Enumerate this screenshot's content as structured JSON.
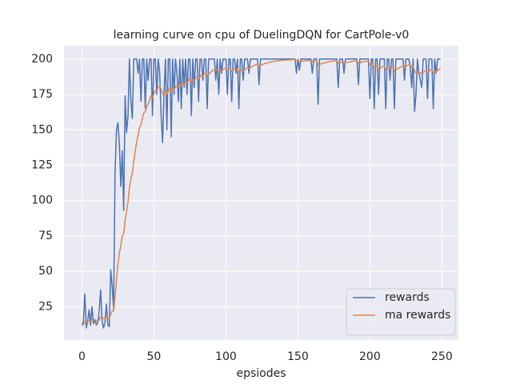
{
  "chart_data": {
    "type": "line",
    "title": "learning curve on cpu of DuelingDQN for CartPole-v0",
    "x_label": "epsiodes",
    "x": [
      0,
      1,
      2,
      3,
      4,
      5,
      6,
      7,
      8,
      9,
      10,
      11,
      12,
      13,
      14,
      15,
      16,
      17,
      18,
      19,
      20,
      21,
      22,
      23,
      24,
      25,
      26,
      27,
      28,
      29,
      30,
      31,
      32,
      33,
      34,
      35,
      36,
      37,
      38,
      39,
      40,
      41,
      42,
      43,
      44,
      45,
      46,
      47,
      48,
      49,
      50,
      51,
      52,
      53,
      54,
      55,
      56,
      57,
      58,
      59,
      60,
      61,
      62,
      63,
      64,
      65,
      66,
      67,
      68,
      69,
      70,
      71,
      72,
      73,
      74,
      75,
      76,
      77,
      78,
      79,
      80,
      81,
      82,
      83,
      84,
      85,
      86,
      87,
      88,
      89,
      90,
      91,
      92,
      93,
      94,
      95,
      96,
      97,
      98,
      99,
      100,
      101,
      102,
      103,
      104,
      105,
      106,
      107,
      108,
      109,
      110,
      111,
      112,
      113,
      114,
      115,
      116,
      117,
      118,
      119,
      120,
      121,
      122,
      123,
      124,
      125,
      126,
      127,
      128,
      129,
      130,
      131,
      132,
      133,
      134,
      135,
      136,
      137,
      138,
      139,
      140,
      141,
      142,
      143,
      144,
      145,
      146,
      147,
      148,
      149,
      150,
      151,
      152,
      153,
      154,
      155,
      156,
      157,
      158,
      159,
      160,
      161,
      162,
      163,
      164,
      165,
      166,
      167,
      168,
      169,
      170,
      171,
      172,
      173,
      174,
      175,
      176,
      177,
      178,
      179,
      180,
      181,
      182,
      183,
      184,
      185,
      186,
      187,
      188,
      189,
      190,
      191,
      192,
      193,
      194,
      195,
      196,
      197,
      198,
      199,
      200,
      201,
      202,
      203,
      204,
      205,
      206,
      207,
      208,
      209,
      210,
      211,
      212,
      213,
      214,
      215,
      216,
      217,
      218,
      219,
      220,
      221,
      222,
      223,
      224,
      225,
      226,
      227,
      228,
      229,
      230,
      231,
      232,
      233,
      234,
      235,
      236,
      237,
      238,
      239,
      240,
      241,
      242,
      243,
      244,
      245,
      246,
      247,
      248,
      249
    ],
    "series": [
      {
        "name": "rewards",
        "color": "#4c72b0",
        "values": [
          12,
          14,
          34,
          10,
          15,
          23,
          12,
          25,
          13,
          16,
          12,
          14,
          22,
          37,
          15,
          10,
          14,
          27,
          12,
          11,
          51,
          40,
          23,
          120,
          150,
          155,
          140,
          110,
          135,
          93,
          174,
          148,
          160,
          200,
          170,
          158,
          200,
          200,
          200,
          190,
          200,
          170,
          200,
          200,
          165,
          200,
          185,
          200,
          200,
          160,
          200,
          200,
          175,
          200,
          190,
          160,
          141,
          175,
          200,
          150,
          200,
          200,
          145,
          200,
          175,
          200,
          190,
          170,
          200,
          165,
          200,
          180,
          200,
          175,
          200,
          200,
          160,
          200,
          180,
          200,
          200,
          170,
          200,
          200,
          185,
          200,
          200,
          165,
          200,
          200,
          200,
          200,
          200,
          185,
          200,
          175,
          200,
          190,
          200,
          200,
          200,
          175,
          200,
          200,
          170,
          200,
          200,
          190,
          200,
          165,
          200,
          200,
          185,
          200,
          200,
          200,
          190,
          200,
          200,
          200,
          200,
          200,
          200,
          182,
          200,
          200,
          200,
          200,
          200,
          200,
          200,
          200,
          200,
          200,
          200,
          200,
          200,
          200,
          200,
          200,
          200,
          200,
          200,
          200,
          200,
          200,
          200,
          200,
          200,
          190,
          200,
          192,
          200,
          200,
          200,
          200,
          200,
          200,
          200,
          200,
          190,
          200,
          200,
          200,
          168,
          200,
          200,
          200,
          200,
          200,
          200,
          200,
          200,
          200,
          200,
          200,
          200,
          200,
          180,
          200,
          200,
          200,
          190,
          200,
          200,
          200,
          200,
          200,
          200,
          200,
          200,
          200,
          182,
          200,
          200,
          200,
          200,
          200,
          200,
          200,
          172,
          200,
          200,
          165,
          200,
          200,
          175,
          200,
          200,
          200,
          200,
          165,
          200,
          200,
          185,
          200,
          200,
          165,
          200,
          200,
          200,
          200,
          200,
          200,
          185,
          200,
          200,
          200,
          195,
          180,
          200,
          163,
          175,
          200,
          190,
          185,
          180,
          200,
          200,
          200,
          172,
          200,
          200,
          200,
          165,
          200,
          190,
          200,
          200,
          200
        ]
      },
      {
        "name": "ma rewards",
        "color": "#dd8452",
        "values": [
          12,
          12.2,
          14.4,
          14,
          14.1,
          15,
          14.7,
          15.7,
          15.4,
          15.4,
          15.1,
          15,
          15.7,
          17.8,
          17.5,
          16.8,
          16.5,
          17.5,
          17,
          16.4,
          19.9,
          21.9,
          22,
          31.8,
          43.6,
          54.8,
          63.3,
          68,
          74.7,
          76.5,
          86.3,
          92.5,
          99.2,
          109.3,
          115.4,
          119.6,
          127.6,
          134.9,
          141.4,
          146.2,
          151.6,
          153.5,
          158.1,
          162.3,
          162.6,
          166.4,
          168.2,
          171.3,
          174.2,
          172.8,
          175.5,
          178,
          177.7,
          179.9,
          180.9,
          178.8,
          175,
          175,
          177.5,
          174.8,
          177.3,
          179.6,
          176.1,
          178.5,
          178.2,
          180.4,
          181.3,
          180.2,
          182.2,
          180.5,
          182.4,
          182.2,
          184,
          183.1,
          184.8,
          186.3,
          183.7,
          185.3,
          184.8,
          186.3,
          187.7,
          185.9,
          187.3,
          188.6,
          188.2,
          189.4,
          190.4,
          187.9,
          189.1,
          190.2,
          191.2,
          192,
          192.8,
          192,
          192.8,
          191,
          191.9,
          191.7,
          192.5,
          193.3,
          193.9,
          192,
          192.8,
          193.5,
          191.2,
          192.1,
          192.9,
          192.6,
          193.3,
          190.5,
          191.4,
          192.3,
          191.6,
          192.4,
          193.2,
          193.9,
          193.5,
          194.1,
          194.7,
          195.2,
          195.7,
          196.1,
          196.5,
          195.1,
          195.6,
          196,
          196.4,
          196.8,
          197.1,
          197.4,
          197.7,
          197.9,
          198.1,
          198.3,
          198.5,
          198.6,
          198.8,
          198.9,
          199,
          199.1,
          199.2,
          199.3,
          199.3,
          199.4,
          199.5,
          199.5,
          199.6,
          199.6,
          199.7,
          198.7,
          198.8,
          198.1,
          198.3,
          198.5,
          198.6,
          198.8,
          198.9,
          199,
          199.1,
          199.2,
          198.3,
          198.4,
          198.6,
          198.7,
          195.7,
          196.2,
          196.6,
          196.9,
          197.2,
          197.5,
          197.7,
          198,
          198.2,
          198.4,
          198.5,
          198.7,
          198.8,
          198.9,
          197,
          197.3,
          197.6,
          197.8,
          197,
          197.3,
          197.6,
          197.8,
          198,
          198.2,
          198.4,
          198.6,
          198.7,
          198.8,
          197.1,
          197.4,
          197.7,
          197.9,
          198.1,
          198.3,
          198.5,
          198.6,
          196,
          196.4,
          196.8,
          193.6,
          194.3,
          194.8,
          192.8,
          193.5,
          194.2,
          194.8,
          195.3,
          192.3,
          193,
          193.7,
          192.9,
          193.6,
          194.3,
          191.3,
          192.1,
          192.9,
          193.6,
          194.3,
          194.8,
          195.3,
          194.3,
          194.9,
          195.4,
          195.9,
          195.8,
          194.2,
          194.8,
          191.6,
          190,
          191,
          190.9,
          190.3,
          189.3,
          190.4,
          191.3,
          192.2,
          190.2,
          191.2,
          192.1,
          192.9,
          190.1,
          191.1,
          191,
          191.9,
          192.7,
          193.4
        ]
      }
    ],
    "xlim": [
      -12.45,
      261.45
    ],
    "xticks": [
      0,
      50,
      100,
      150,
      200,
      250
    ],
    "ylim": [
      1.5,
      209.5
    ],
    "yticks": [
      25,
      50,
      75,
      100,
      125,
      150,
      175,
      200
    ],
    "grid": true,
    "legend": "lower right"
  }
}
